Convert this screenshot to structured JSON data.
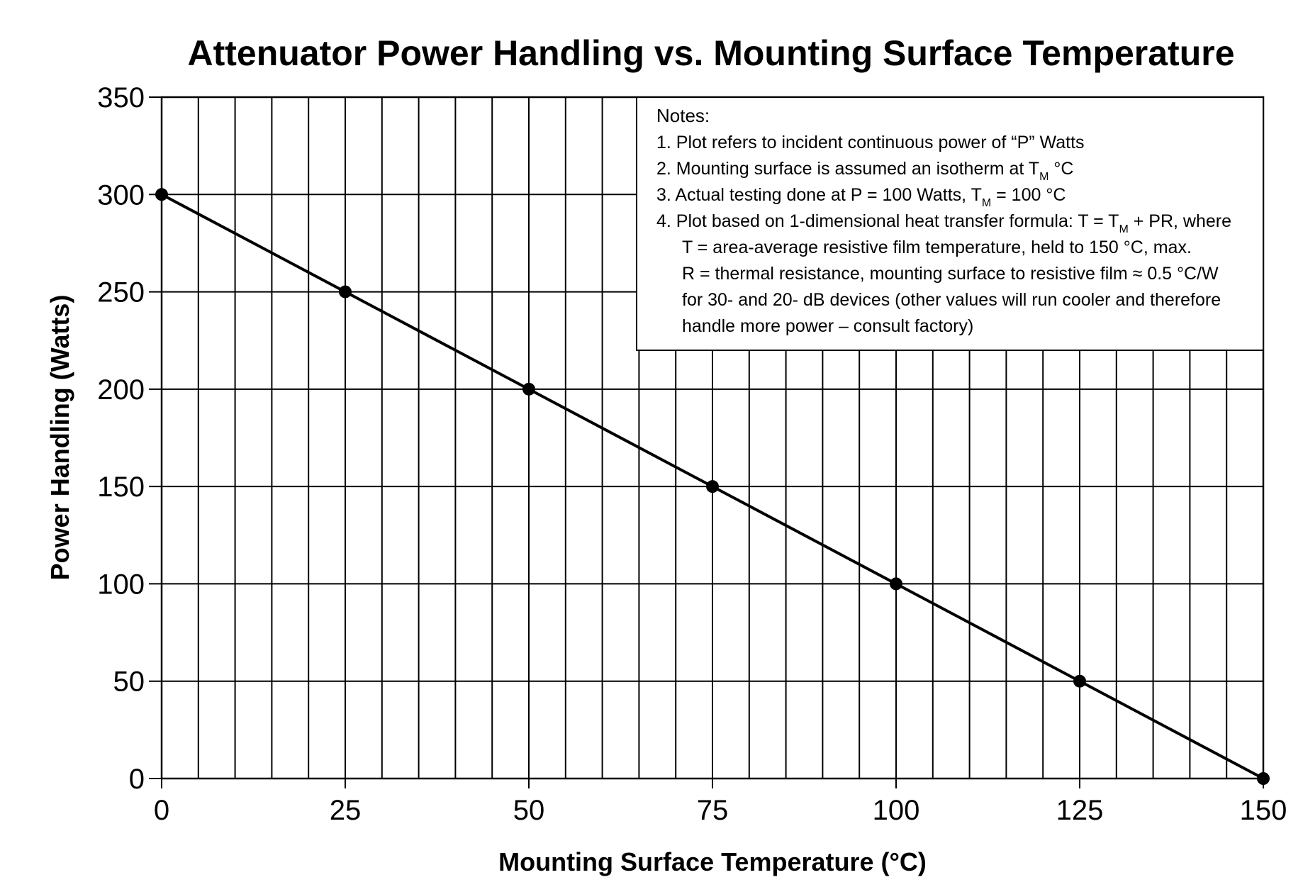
{
  "chart_data": {
    "type": "line",
    "title": "Attenuator Power Handling vs. Mounting Surface Temperature",
    "xlabel": "Mounting Surface Temperature (°C)",
    "ylabel": "Power Handling (Watts)",
    "xlim": [
      0,
      150
    ],
    "ylim": [
      0,
      350
    ],
    "x_ticks": [
      "0",
      "25",
      "50",
      "75",
      "100",
      "125",
      "150"
    ],
    "y_ticks": [
      "0",
      "50",
      "100",
      "150",
      "200",
      "250",
      "300",
      "350"
    ],
    "grid": true,
    "grid_minor_x_step": 5,
    "grid_y_step": 50,
    "series": [
      {
        "x": [
          0,
          25,
          50,
          75,
          100,
          125,
          150
        ],
        "y": [
          300,
          250,
          200,
          150,
          100,
          50,
          0
        ],
        "markers": true,
        "color": "#000000"
      }
    ],
    "notes": {
      "heading": "Notes:",
      "line1": "1. Plot refers to incident continuous power of “P” Watts",
      "line2_a": "2. Mounting surface is assumed an isotherm at T",
      "line2_sub": "M",
      "line2_b": " °C",
      "line3_a": "3. Actual testing done at P = 100 Watts, T",
      "line3_sub": "M",
      "line3_b": " = 100 °C",
      "line4_a": "4. Plot based on 1-dimensional heat transfer formula: T = T",
      "line4_sub": "M",
      "line4_b": " + PR, where",
      "line5": "T = area-average resistive film temperature, held to 150 °C, max.",
      "line6": "R = thermal resistance, mounting surface to resistive film ≈ 0.5 °C/W",
      "line7": "for 30- and 20- dB devices (other values will run cooler and therefore",
      "line8": "handle more power – consult factory)"
    }
  }
}
